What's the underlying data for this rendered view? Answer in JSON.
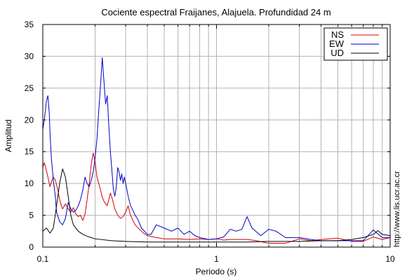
{
  "chart_data": {
    "type": "line",
    "title": "Cociente espectral Fraijanes, Alajuela. Profundidad 24 m",
    "xlabel": "Periodo (s)",
    "ylabel": "Amplitud",
    "x_scale": "log",
    "xlim": [
      0.1,
      10
    ],
    "ylim": [
      0,
      35
    ],
    "x_ticks": [
      0.1,
      1,
      10
    ],
    "x_tick_labels": [
      "0.1",
      "1",
      "10"
    ],
    "y_ticks": [
      0,
      5,
      10,
      15,
      20,
      25,
      30,
      35
    ],
    "y_tick_labels": [
      "0",
      "5",
      "10",
      "15",
      "20",
      "25",
      "30",
      "35"
    ],
    "grid": true,
    "legend_position": "top-right",
    "side_note": "http://www.lis.ucr.ac.cr",
    "series": [
      {
        "name": "NS",
        "color": "#d40000",
        "points": [
          [
            0.1,
            12.5
          ],
          [
            0.102,
            13.3
          ],
          [
            0.105,
            12.0
          ],
          [
            0.108,
            10.5
          ],
          [
            0.11,
            9.5
          ],
          [
            0.112,
            10.2
          ],
          [
            0.115,
            11.0
          ],
          [
            0.118,
            10.6
          ],
          [
            0.12,
            9.8
          ],
          [
            0.122,
            9.0
          ],
          [
            0.125,
            7.5
          ],
          [
            0.128,
            6.5
          ],
          [
            0.13,
            6.0
          ],
          [
            0.135,
            6.8
          ],
          [
            0.14,
            6.0
          ],
          [
            0.145,
            5.5
          ],
          [
            0.15,
            6.2
          ],
          [
            0.155,
            5.2
          ],
          [
            0.16,
            4.8
          ],
          [
            0.165,
            5.0
          ],
          [
            0.17,
            4.2
          ],
          [
            0.175,
            5.2
          ],
          [
            0.18,
            7.5
          ],
          [
            0.185,
            10.0
          ],
          [
            0.19,
            13.0
          ],
          [
            0.195,
            14.8
          ],
          [
            0.2,
            13.5
          ],
          [
            0.205,
            11.0
          ],
          [
            0.21,
            10.0
          ],
          [
            0.215,
            9.0
          ],
          [
            0.22,
            7.8
          ],
          [
            0.225,
            7.2
          ],
          [
            0.23,
            6.8
          ],
          [
            0.235,
            6.5
          ],
          [
            0.24,
            7.5
          ],
          [
            0.245,
            8.5
          ],
          [
            0.25,
            7.8
          ],
          [
            0.26,
            6.0
          ],
          [
            0.27,
            5.0
          ],
          [
            0.28,
            4.5
          ],
          [
            0.29,
            4.8
          ],
          [
            0.3,
            5.5
          ],
          [
            0.31,
            6.5
          ],
          [
            0.32,
            5.0
          ],
          [
            0.34,
            3.5
          ],
          [
            0.36,
            2.8
          ],
          [
            0.38,
            2.2
          ],
          [
            0.4,
            1.8
          ],
          [
            0.45,
            1.5
          ],
          [
            0.5,
            1.3
          ],
          [
            0.6,
            1.3
          ],
          [
            0.7,
            1.2
          ],
          [
            0.8,
            1.3
          ],
          [
            0.9,
            1.2
          ],
          [
            1.0,
            1.3
          ],
          [
            1.1,
            1.1
          ],
          [
            1.2,
            1.2
          ],
          [
            1.5,
            1.2
          ],
          [
            1.7,
            1.0
          ],
          [
            2.0,
            0.6
          ],
          [
            2.5,
            0.6
          ],
          [
            3.0,
            1.3
          ],
          [
            3.5,
            1.0
          ],
          [
            4.0,
            1.2
          ],
          [
            5.0,
            1.4
          ],
          [
            6.0,
            0.9
          ],
          [
            7.0,
            0.9
          ],
          [
            8.0,
            1.6
          ],
          [
            9.0,
            1.2
          ],
          [
            10.0,
            1.5
          ]
        ]
      },
      {
        "name": "EW",
        "color": "#0000c8",
        "points": [
          [
            0.1,
            18.5
          ],
          [
            0.102,
            20.0
          ],
          [
            0.105,
            23.0
          ],
          [
            0.107,
            23.8
          ],
          [
            0.109,
            21.0
          ],
          [
            0.11,
            18.0
          ],
          [
            0.112,
            14.0
          ],
          [
            0.115,
            10.5
          ],
          [
            0.118,
            8.0
          ],
          [
            0.12,
            5.5
          ],
          [
            0.125,
            4.0
          ],
          [
            0.13,
            3.5
          ],
          [
            0.135,
            4.5
          ],
          [
            0.14,
            7.0
          ],
          [
            0.145,
            6.0
          ],
          [
            0.15,
            5.5
          ],
          [
            0.155,
            5.8
          ],
          [
            0.16,
            6.5
          ],
          [
            0.165,
            7.5
          ],
          [
            0.17,
            9.0
          ],
          [
            0.175,
            11.0
          ],
          [
            0.18,
            10.0
          ],
          [
            0.185,
            9.5
          ],
          [
            0.19,
            10.5
          ],
          [
            0.195,
            11.8
          ],
          [
            0.2,
            14.0
          ],
          [
            0.205,
            17.0
          ],
          [
            0.21,
            21.5
          ],
          [
            0.215,
            25.5
          ],
          [
            0.22,
            29.8
          ],
          [
            0.225,
            26.0
          ],
          [
            0.23,
            22.5
          ],
          [
            0.235,
            23.8
          ],
          [
            0.24,
            19.0
          ],
          [
            0.245,
            15.0
          ],
          [
            0.25,
            12.0
          ],
          [
            0.255,
            9.0
          ],
          [
            0.26,
            8.0
          ],
          [
            0.265,
            9.5
          ],
          [
            0.27,
            12.5
          ],
          [
            0.275,
            11.8
          ],
          [
            0.28,
            10.5
          ],
          [
            0.285,
            11.5
          ],
          [
            0.29,
            10.0
          ],
          [
            0.295,
            11.0
          ],
          [
            0.3,
            10.0
          ],
          [
            0.31,
            8.0
          ],
          [
            0.32,
            6.5
          ],
          [
            0.33,
            5.8
          ],
          [
            0.34,
            5.0
          ],
          [
            0.35,
            4.5
          ],
          [
            0.37,
            3.0
          ],
          [
            0.4,
            2.0
          ],
          [
            0.42,
            2.0
          ],
          [
            0.45,
            3.5
          ],
          [
            0.5,
            3.0
          ],
          [
            0.55,
            2.5
          ],
          [
            0.6,
            3.0
          ],
          [
            0.65,
            2.0
          ],
          [
            0.7,
            2.5
          ],
          [
            0.75,
            1.8
          ],
          [
            0.8,
            1.5
          ],
          [
            0.9,
            1.2
          ],
          [
            1.0,
            1.3
          ],
          [
            1.1,
            1.6
          ],
          [
            1.2,
            2.8
          ],
          [
            1.3,
            2.5
          ],
          [
            1.4,
            2.8
          ],
          [
            1.5,
            4.8
          ],
          [
            1.6,
            3.0
          ],
          [
            1.8,
            1.8
          ],
          [
            2.0,
            2.8
          ],
          [
            2.2,
            2.5
          ],
          [
            2.5,
            1.5
          ],
          [
            3.0,
            1.5
          ],
          [
            3.5,
            1.2
          ],
          [
            4.0,
            1.0
          ],
          [
            5.0,
            1.0
          ],
          [
            6.0,
            1.0
          ],
          [
            7.0,
            1.0
          ],
          [
            8.0,
            2.7
          ],
          [
            9.0,
            1.5
          ],
          [
            10.0,
            1.5
          ]
        ]
      },
      {
        "name": "UD",
        "color": "#000000",
        "points": [
          [
            0.1,
            2.5
          ],
          [
            0.105,
            3.0
          ],
          [
            0.11,
            2.2
          ],
          [
            0.115,
            3.0
          ],
          [
            0.12,
            6.5
          ],
          [
            0.125,
            10.0
          ],
          [
            0.13,
            12.3
          ],
          [
            0.135,
            11.0
          ],
          [
            0.14,
            8.0
          ],
          [
            0.145,
            5.0
          ],
          [
            0.15,
            3.5
          ],
          [
            0.16,
            2.5
          ],
          [
            0.17,
            2.0
          ],
          [
            0.18,
            1.7
          ],
          [
            0.2,
            1.3
          ],
          [
            0.25,
            1.0
          ],
          [
            0.3,
            0.9
          ],
          [
            0.4,
            0.8
          ],
          [
            0.5,
            0.8
          ],
          [
            0.7,
            0.8
          ],
          [
            1.0,
            0.8
          ],
          [
            1.5,
            0.8
          ],
          [
            2.0,
            0.9
          ],
          [
            3.0,
            0.9
          ],
          [
            4.0,
            1.0
          ],
          [
            5.0,
            1.0
          ],
          [
            6.0,
            1.2
          ],
          [
            7.0,
            1.5
          ],
          [
            8.0,
            2.0
          ],
          [
            8.5,
            2.6
          ],
          [
            9.0,
            2.0
          ],
          [
            10.0,
            1.8
          ]
        ]
      }
    ]
  }
}
